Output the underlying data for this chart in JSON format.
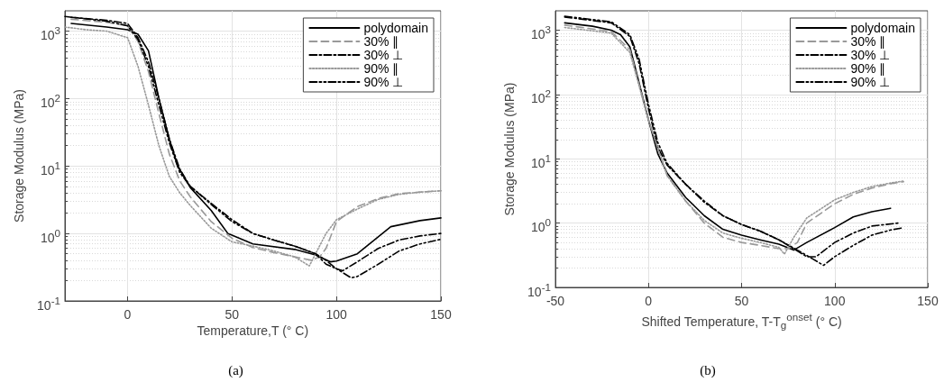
{
  "chart_data": [
    {
      "type": "line",
      "xlabel": "Temperature,T (° C)",
      "ylabel": "Storage Modulus (MPa)",
      "annotations": [
        "(a)"
      ],
      "log": "y",
      "grid": true,
      "legend": "top right",
      "marker": "none",
      "xlim": [
        -30,
        150
      ],
      "xticks": [
        0,
        50,
        100,
        150
      ],
      "ylim": [
        0.1,
        2000
      ],
      "yticks": [
        {
          "value": 0.1,
          "label": "10$^{-1}$"
        },
        {
          "value": 1,
          "label": "10$^{0}$"
        },
        {
          "value": 10,
          "label": "10$^{1}$"
        },
        {
          "value": 100,
          "label": "10$^{2}$"
        },
        {
          "value": 1000,
          "label": "10$^{3}$"
        }
      ],
      "series": [
        {
          "name": "polydomain",
          "color": "#000000",
          "line_style": "solid",
          "x": [
            -27,
            -10,
            0,
            5,
            10,
            13.6,
            15,
            20,
            24,
            30,
            40,
            48,
            60,
            80,
            90,
            97,
            100,
            110,
            126,
            140,
            150
          ],
          "values": [
            1300,
            1150,
            1050,
            900,
            510,
            160,
            100,
            25,
            10,
            4.8,
            2.2,
            1,
            0.7,
            0.58,
            0.48,
            0.38,
            0.39,
            0.5,
            1.26,
            1.55,
            1.7
          ]
        },
        {
          "name": "30% ∥",
          "color": "#999999",
          "line_style": "dashed",
          "x": [
            -27,
            -10,
            0,
            5,
            10,
            15,
            20,
            25,
            30,
            40,
            50,
            60,
            70,
            80,
            88,
            92,
            95,
            100,
            110,
            120,
            130,
            150
          ],
          "values": [
            1500,
            1350,
            1200,
            700,
            250,
            60,
            15,
            6,
            3.5,
            1.5,
            0.85,
            0.62,
            0.52,
            0.45,
            0.4,
            0.45,
            0.6,
            1.5,
            2.5,
            3.3,
            3.9,
            4.3
          ]
        },
        {
          "name": "30% ⊥",
          "color": "#000000",
          "line_style": "dashdot",
          "x": [
            -27,
            -10,
            0,
            5,
            10,
            15,
            20,
            25,
            30,
            40,
            50,
            60,
            70,
            80,
            90,
            95,
            100,
            103,
            110,
            120,
            130,
            140,
            150
          ],
          "values": [
            1600,
            1450,
            1300,
            800,
            350,
            100,
            25,
            9,
            5,
            2.8,
            1.6,
            1,
            0.8,
            0.65,
            0.5,
            0.35,
            0.3,
            0.28,
            0.38,
            0.6,
            0.8,
            0.92,
            1
          ]
        },
        {
          "name": "90% ∥",
          "color": "#999999",
          "line_style": "dotted",
          "x": [
            -30,
            -20,
            -10,
            0,
            5,
            10,
            15,
            20,
            25,
            30,
            40,
            50,
            60,
            70,
            80,
            87,
            90,
            95,
            100,
            110,
            120,
            130,
            140,
            150
          ],
          "values": [
            1150,
            1050,
            1000,
            800,
            300,
            80,
            20,
            7,
            4,
            2.6,
            1.2,
            0.75,
            0.65,
            0.55,
            0.45,
            0.33,
            0.5,
            1,
            1.6,
            2.3,
            3.2,
            3.8,
            4.1,
            4.3
          ]
        },
        {
          "name": "90% ⊥",
          "color": "#000000",
          "line_style": "dashdotdot",
          "x": [
            -30,
            -10,
            0,
            5,
            10,
            15,
            20,
            25,
            30,
            40,
            50,
            60,
            70,
            80,
            90,
            95,
            100,
            107,
            110,
            120,
            130,
            140,
            150
          ],
          "values": [
            1650,
            1400,
            1200,
            750,
            300,
            80,
            22,
            8,
            5,
            2.7,
            1.5,
            1,
            0.8,
            0.65,
            0.5,
            0.4,
            0.3,
            0.22,
            0.23,
            0.35,
            0.55,
            0.7,
            0.82
          ]
        }
      ]
    },
    {
      "type": "line",
      "xlabel": "Shifted Temperature, T-T$_{g}$$^{onset}$ (° C)",
      "ylabel": "Storage Modulus (MPa)",
      "annotations": [
        "(b)"
      ],
      "log": "y",
      "grid": true,
      "legend": "top right",
      "marker": "none",
      "xlim": [
        -50,
        150
      ],
      "xticks": [
        -50,
        0,
        50,
        100,
        150
      ],
      "ylim": [
        0.1,
        2000
      ],
      "yticks": [
        {
          "value": 0.1,
          "label": "10$^{-1}$"
        },
        {
          "value": 1,
          "label": "10$^{0}$"
        },
        {
          "value": 10,
          "label": "10$^{1}$"
        },
        {
          "value": 100,
          "label": "10$^{2}$"
        },
        {
          "value": 1000,
          "label": "10$^{3}$"
        }
      ],
      "series": [
        {
          "name": "polydomain",
          "color": "#000000",
          "line_style": "solid",
          "x": [
            -45,
            -30,
            -20,
            -15,
            -10,
            -5,
            0,
            5,
            10,
            20,
            30,
            40,
            50,
            60,
            70,
            78,
            85,
            100,
            110,
            120,
            130
          ],
          "values": [
            1300,
            1150,
            1000,
            850,
            550,
            150,
            40,
            12,
            6,
            2.5,
            1.3,
            0.8,
            0.65,
            0.55,
            0.47,
            0.38,
            0.5,
            0.85,
            1.25,
            1.5,
            1.7
          ]
        },
        {
          "name": "30% ∥",
          "color": "#999999",
          "line_style": "dashed",
          "x": [
            -45,
            -20,
            -10,
            0,
            10,
            20,
            30,
            40,
            50,
            60,
            70,
            75,
            80,
            85,
            100,
            110,
            120,
            130,
            137
          ],
          "values": [
            1200,
            950,
            500,
            40,
            5.5,
            2.2,
            1,
            0.6,
            0.5,
            0.45,
            0.4,
            0.4,
            0.5,
            1,
            2,
            2.8,
            3.5,
            4.1,
            4.4
          ]
        },
        {
          "name": "30% ⊥",
          "color": "#000000",
          "line_style": "dashdot",
          "x": [
            -45,
            -20,
            -10,
            -5,
            0,
            5,
            10,
            20,
            30,
            40,
            50,
            60,
            70,
            78,
            85,
            90,
            100,
            110,
            120,
            134
          ],
          "values": [
            1600,
            1300,
            800,
            300,
            60,
            15,
            8,
            4,
            2.2,
            1.3,
            0.95,
            0.75,
            0.55,
            0.4,
            0.3,
            0.3,
            0.5,
            0.7,
            0.9,
            1
          ]
        },
        {
          "name": "90% ∥",
          "color": "#999999",
          "line_style": "dotted",
          "x": [
            -45,
            -20,
            -10,
            0,
            10,
            20,
            30,
            40,
            50,
            60,
            70,
            73,
            78,
            85,
            100,
            110,
            120,
            130,
            137
          ],
          "values": [
            1100,
            900,
            450,
            40,
            5.5,
            2.2,
            1.1,
            0.7,
            0.58,
            0.5,
            0.42,
            0.33,
            0.6,
            1.2,
            2.3,
            3,
            3.7,
            4.2,
            4.5
          ]
        },
        {
          "name": "90% ⊥",
          "color": "#000000",
          "line_style": "dashdotdot",
          "x": [
            -45,
            -20,
            -10,
            -5,
            0,
            5,
            10,
            20,
            30,
            40,
            50,
            60,
            70,
            80,
            88,
            94,
            100,
            110,
            120,
            130,
            137
          ],
          "values": [
            1650,
            1350,
            850,
            350,
            70,
            18,
            8.5,
            4,
            2.1,
            1.3,
            0.95,
            0.75,
            0.55,
            0.38,
            0.28,
            0.22,
            0.3,
            0.45,
            0.65,
            0.78,
            0.85
          ]
        }
      ]
    }
  ]
}
